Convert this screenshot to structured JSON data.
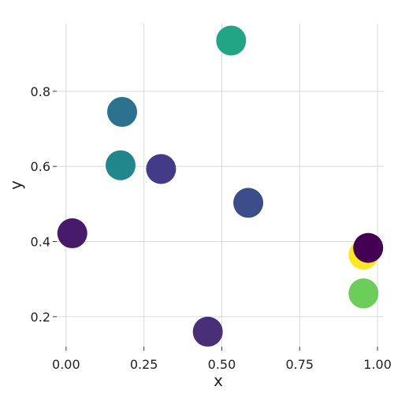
{
  "chart_data": {
    "type": "scatter",
    "title": "",
    "xlabel": "x",
    "ylabel": "y",
    "xlim": [
      -0.03,
      1.02
    ],
    "ylim": [
      0.12,
      0.98
    ],
    "x_ticks": [
      0.0,
      0.25,
      0.5,
      0.75,
      1.0
    ],
    "x_tick_labels": [
      "0.00",
      "0.25",
      "0.50",
      "0.75",
      "1.00"
    ],
    "y_ticks": [
      0.2,
      0.4,
      0.6,
      0.8
    ],
    "y_tick_labels": [
      "0.2",
      "0.4",
      "0.6",
      "0.8"
    ],
    "grid": true,
    "colormap": "viridis",
    "points": [
      {
        "x": 0.53,
        "y": 0.935,
        "color": "#21a585"
      },
      {
        "x": 0.18,
        "y": 0.745,
        "color": "#2c728e"
      },
      {
        "x": 0.175,
        "y": 0.603,
        "color": "#22878c"
      },
      {
        "x": 0.305,
        "y": 0.593,
        "color": "#433b87"
      },
      {
        "x": 0.585,
        "y": 0.503,
        "color": "#3b4d8a"
      },
      {
        "x": 0.02,
        "y": 0.422,
        "color": "#471b6a"
      },
      {
        "x": 0.955,
        "y": 0.365,
        "color": "#fde725"
      },
      {
        "x": 0.97,
        "y": 0.383,
        "color": "#440154"
      },
      {
        "x": 0.955,
        "y": 0.262,
        "color": "#6ccd5a"
      },
      {
        "x": 0.455,
        "y": 0.16,
        "color": "#482f78"
      }
    ]
  }
}
